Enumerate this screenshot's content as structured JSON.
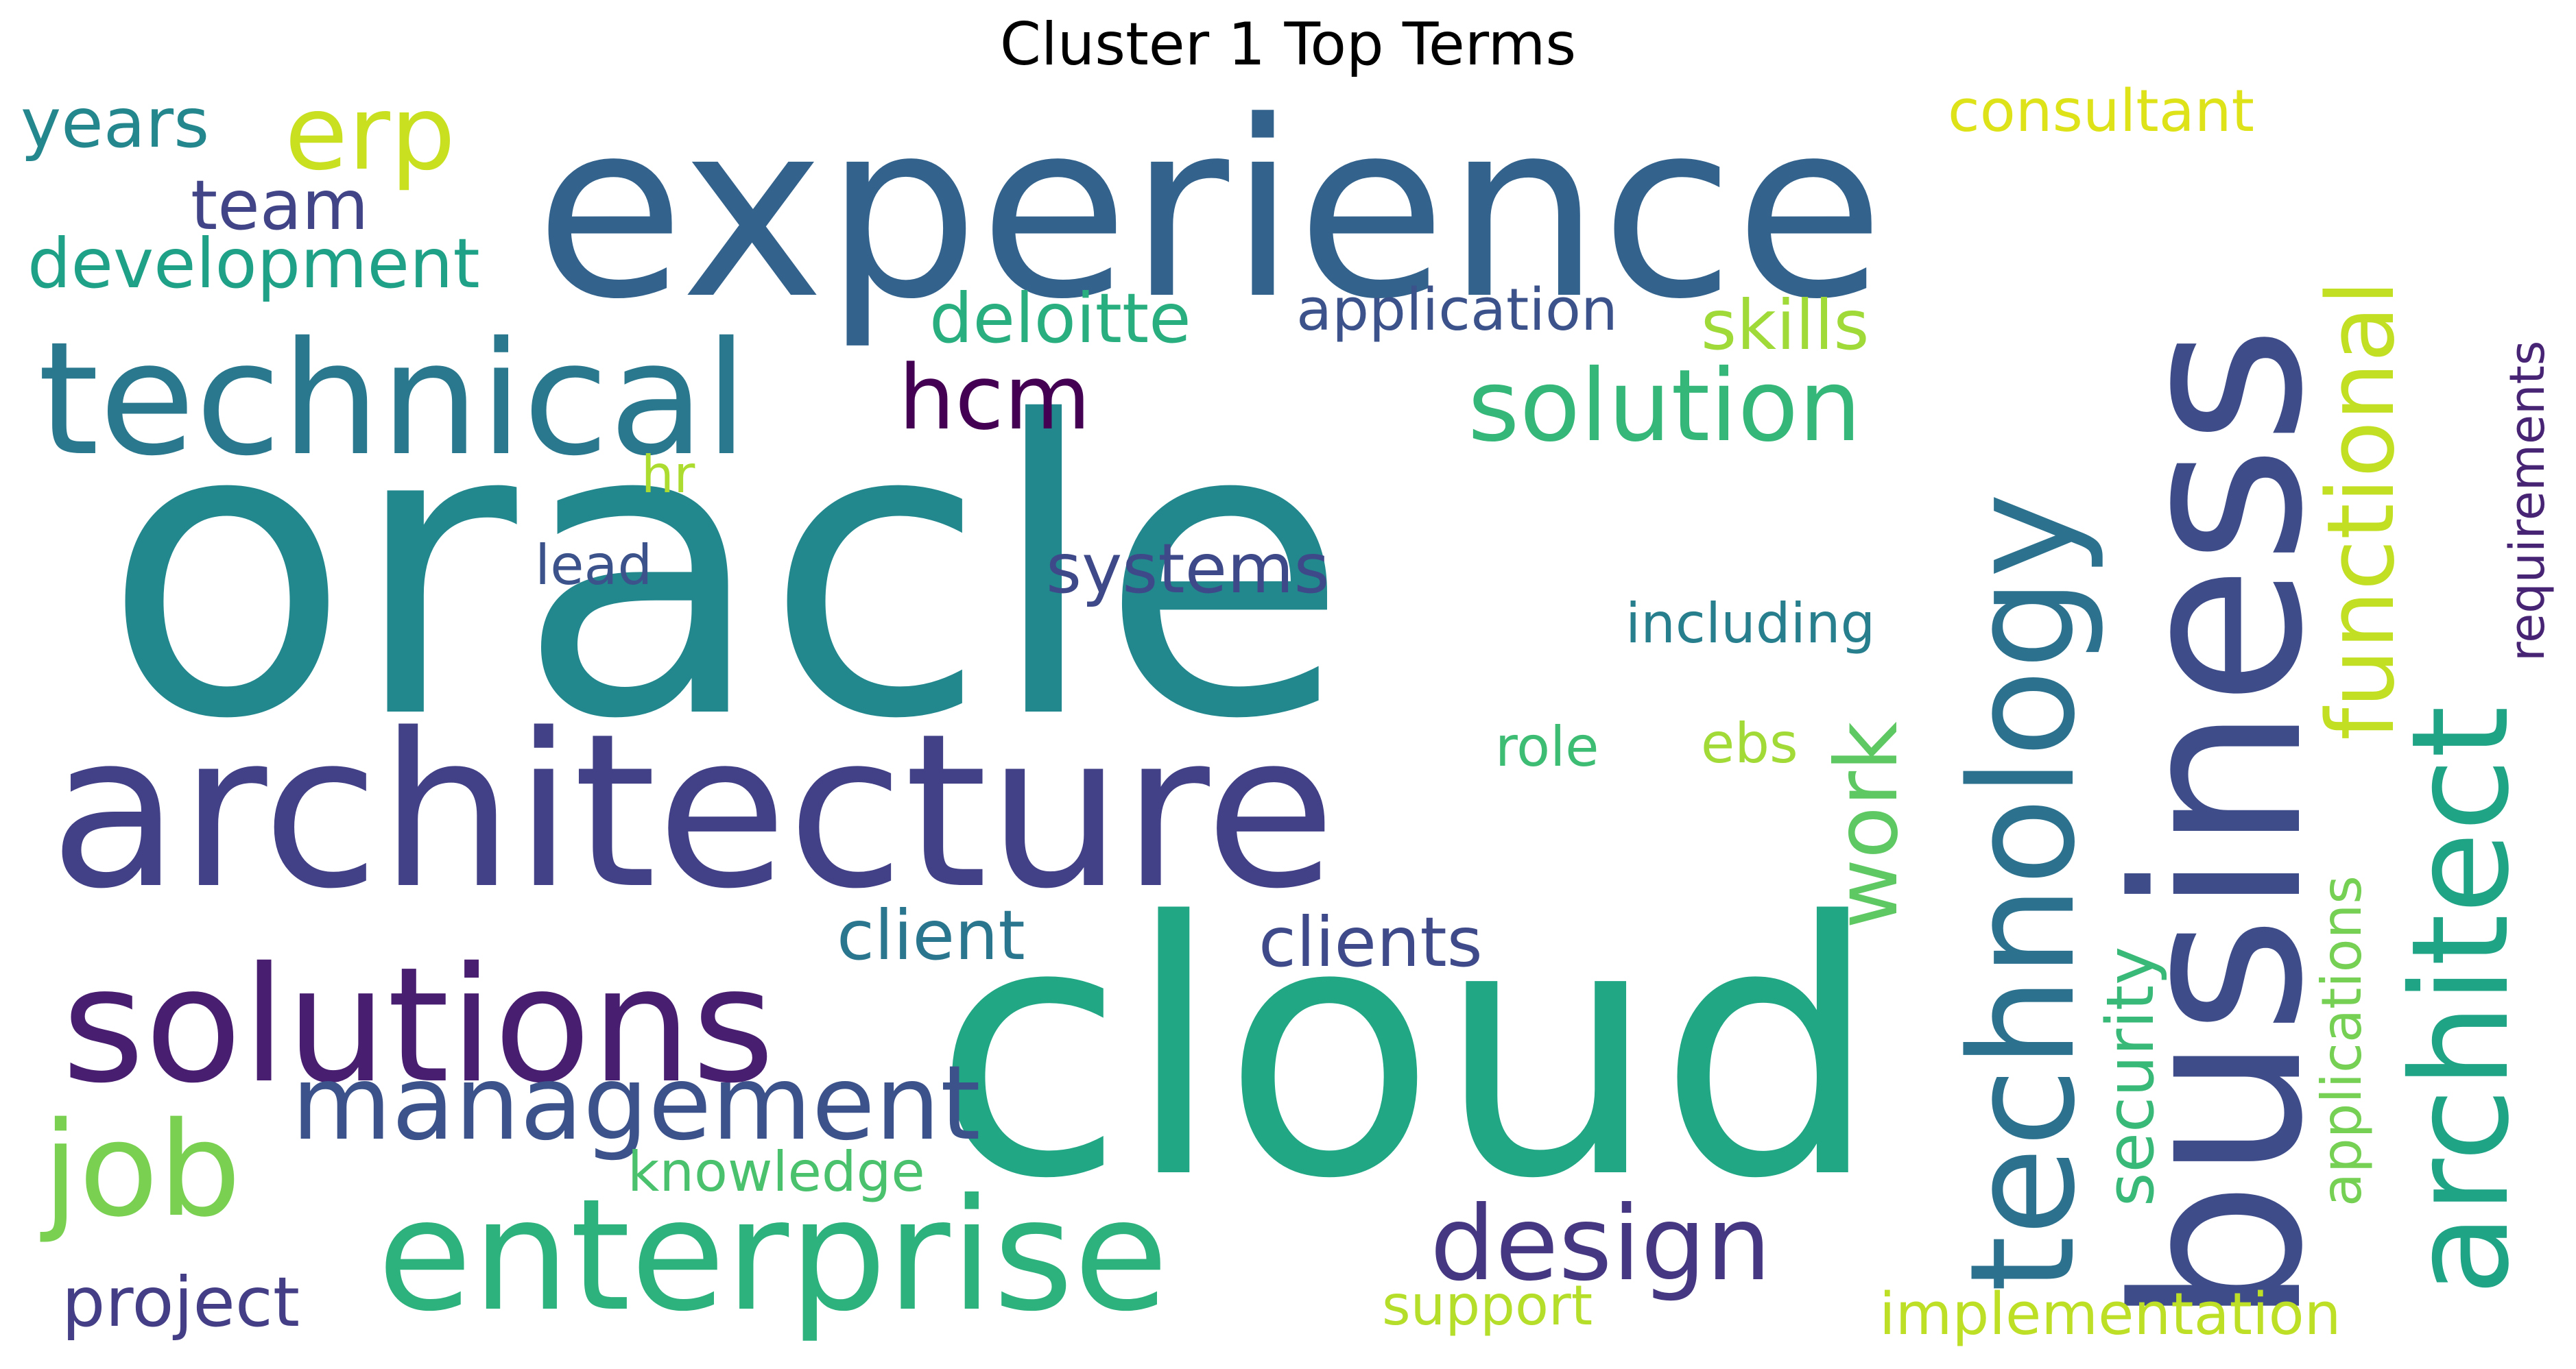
{
  "title": "Cluster 1 Top Terms",
  "words": [
    {
      "text": "oracle",
      "color": "#23888e"
    },
    {
      "text": "experience",
      "color": "#33638d"
    },
    {
      "text": "architecture",
      "color": "#424086"
    },
    {
      "text": "cloud",
      "color": "#22a785"
    },
    {
      "text": "business",
      "color": "#3e4c8a"
    },
    {
      "text": "technical",
      "color": "#2a788e"
    },
    {
      "text": "solutions",
      "color": "#481f70"
    },
    {
      "text": "enterprise",
      "color": "#2db27d"
    },
    {
      "text": "technology",
      "color": "#2c728e"
    },
    {
      "text": "architect",
      "color": "#20a486"
    },
    {
      "text": "management",
      "color": "#3b528b"
    },
    {
      "text": "job",
      "color": "#7ad151"
    },
    {
      "text": "solution",
      "color": "#35b779"
    },
    {
      "text": "erp",
      "color": "#c8e020"
    },
    {
      "text": "design",
      "color": "#453781"
    },
    {
      "text": "functional",
      "color": "#c2df23"
    },
    {
      "text": "hcm",
      "color": "#440154"
    },
    {
      "text": "work",
      "color": "#5ec962"
    },
    {
      "text": "development",
      "color": "#1fa188"
    },
    {
      "text": "years",
      "color": "#24878e"
    },
    {
      "text": "team",
      "color": "#414487"
    },
    {
      "text": "deloitte",
      "color": "#29af7f"
    },
    {
      "text": "application",
      "color": "#3b528b"
    },
    {
      "text": "skills",
      "color": "#a0da39"
    },
    {
      "text": "consultant",
      "color": "#dde318"
    },
    {
      "text": "systems",
      "color": "#3e4989"
    },
    {
      "text": "security",
      "color": "#38b977"
    },
    {
      "text": "applications",
      "color": "#75d054"
    },
    {
      "text": "requirements",
      "color": "#482475"
    },
    {
      "text": "client",
      "color": "#2a768e"
    },
    {
      "text": "clients",
      "color": "#3e4a89"
    },
    {
      "text": "knowledge",
      "color": "#4ac16d"
    },
    {
      "text": "project",
      "color": "#433e85"
    },
    {
      "text": "support",
      "color": "#b5de2b"
    },
    {
      "text": "implementation",
      "color": "#bddf26"
    },
    {
      "text": "including",
      "color": "#277f8e"
    },
    {
      "text": "lead",
      "color": "#3b528b"
    },
    {
      "text": "hr",
      "color": "#addc30"
    },
    {
      "text": "role",
      "color": "#3dbc74"
    },
    {
      "text": "ebs",
      "color": "#a2da37"
    }
  ]
}
